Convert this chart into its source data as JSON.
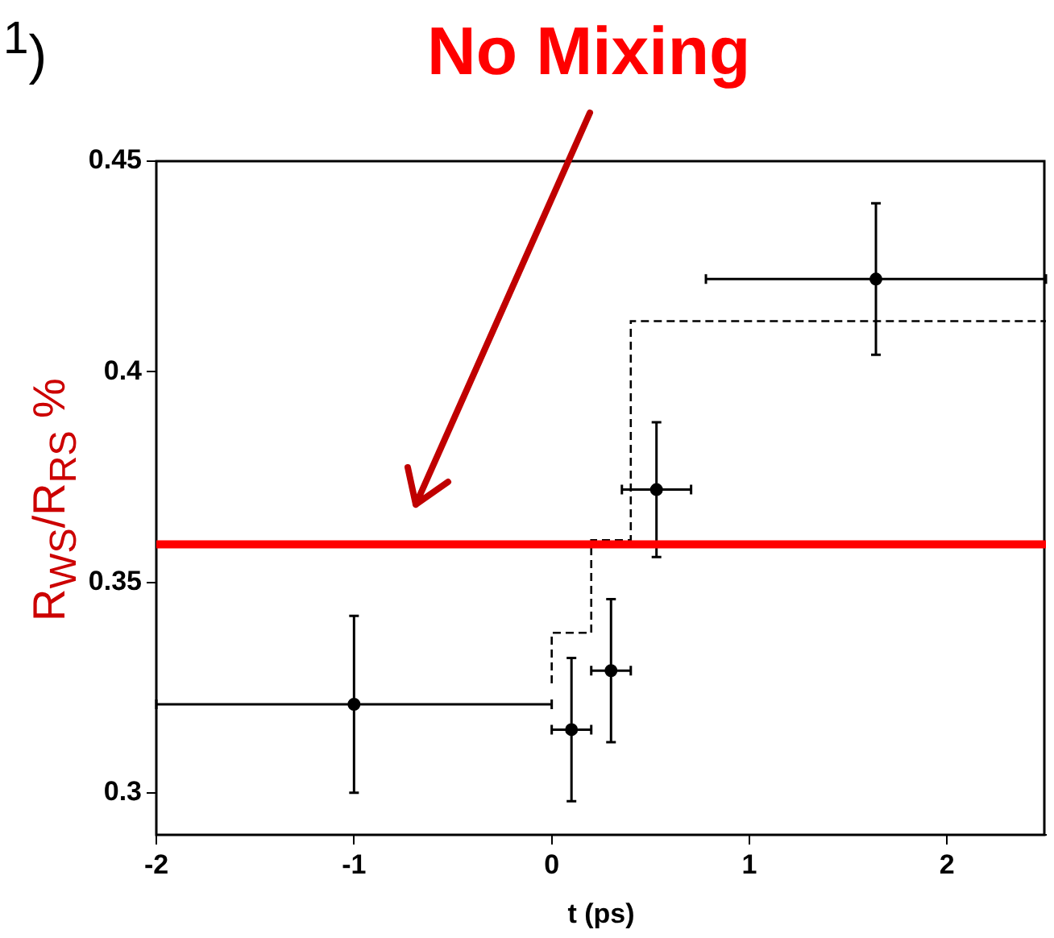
{
  "chart_data": {
    "type": "scatter",
    "xlabel": "t (ps)",
    "ylabel": "R$_{WS}$/R$_{RS}$ %",
    "annotations": [
      "$^{1}$)"
    ],
    "xlim": [
      -2,
      2.5
    ],
    "ylim": [
      0.29,
      0.45
    ],
    "xticks": [
      -2,
      -1,
      0,
      1,
      2
    ],
    "yticks": [
      0.3,
      0.35,
      0.4,
      0.45
    ],
    "grid": false,
    "legend": false,
    "marker": "circle",
    "series": [
      {
        "color": "#000000",
        "x": [
          -1,
          0.1,
          0.3,
          0.53,
          1.64
        ],
        "values": [
          0.321,
          0.315,
          0.329,
          0.372,
          0.422
        ],
        "errors": [
          0.021,
          0.017,
          0.017,
          0.016,
          0.018
        ],
        "xerrors": [
          1,
          0.1,
          0.1,
          0.175,
          0.86
        ]
      },
      {
        "type": "step",
        "color": "#000000",
        "line_style": "dashed",
        "marker": "none",
        "x": [
          0,
          0.2,
          0.4,
          0.75,
          2.5
        ],
        "values": [
          0.326,
          0.338,
          0.36,
          0.412,
          0.412
        ]
      }
    ],
    "ref_lines": [
      {
        "axis": "y",
        "value": 0.359,
        "label": "No Mixing",
        "color": "#ff0000"
      }
    ]
  }
}
